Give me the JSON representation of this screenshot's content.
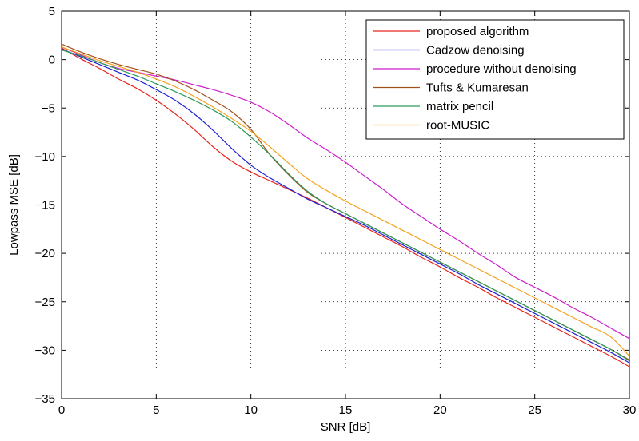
{
  "chart_data": {
    "type": "line",
    "title": "",
    "xlabel": "SNR [dB]",
    "ylabel": "Lowpass MSE [dB]",
    "xlim": [
      0,
      30
    ],
    "ylim": [
      -35,
      5
    ],
    "xticks": [
      0,
      5,
      10,
      15,
      20,
      25,
      30
    ],
    "yticks": [
      5,
      0,
      -5,
      -10,
      -15,
      -20,
      -25,
      -30,
      -35
    ],
    "grid": true,
    "legend_position": "top-right",
    "series": [
      {
        "name": "proposed algorithm",
        "color": "#e8261d",
        "x": [
          0,
          1,
          2,
          3,
          4,
          5,
          6,
          7,
          8,
          9,
          10,
          11,
          12,
          13,
          14,
          15,
          16,
          17,
          18,
          19,
          20,
          21,
          22,
          23,
          24,
          25,
          26,
          27,
          28,
          29,
          30
        ],
        "y": [
          1.2,
          0.1,
          -0.9,
          -2.0,
          -3.0,
          -4.2,
          -5.6,
          -7.2,
          -9.0,
          -10.5,
          -11.6,
          -12.5,
          -13.4,
          -14.3,
          -15.3,
          -16.3,
          -17.3,
          -18.3,
          -19.3,
          -20.4,
          -21.4,
          -22.5,
          -23.5,
          -24.6,
          -25.6,
          -26.6,
          -27.6,
          -28.6,
          -29.6,
          -30.6,
          -31.7
        ]
      },
      {
        "name": "Cadzow denoising",
        "color": "#1f1fd6",
        "x": [
          0,
          1,
          2,
          3,
          4,
          5,
          6,
          7,
          8,
          9,
          10,
          11,
          12,
          13,
          14,
          15,
          16,
          17,
          18,
          19,
          20,
          21,
          22,
          23,
          24,
          25,
          26,
          27,
          28,
          29,
          30
        ],
        "y": [
          1.1,
          0.3,
          -0.5,
          -1.3,
          -2.1,
          -3.1,
          -4.2,
          -5.6,
          -7.3,
          -9.2,
          -10.9,
          -12.2,
          -13.3,
          -14.4,
          -15.3,
          -16.2,
          -17.1,
          -18.1,
          -19.1,
          -20.1,
          -21.1,
          -22.1,
          -23.2,
          -24.2,
          -25.2,
          -26.2,
          -27.2,
          -28.2,
          -29.2,
          -30.2,
          -31.3
        ]
      },
      {
        "name": "procedure without denoising",
        "color": "#cc1fcc",
        "x": [
          0,
          1,
          2,
          3,
          4,
          5,
          6,
          7,
          8,
          9,
          10,
          11,
          12,
          13,
          14,
          15,
          16,
          17,
          18,
          19,
          20,
          21,
          22,
          23,
          24,
          25,
          26,
          27,
          28,
          29,
          30
        ],
        "y": [
          1.3,
          0.5,
          -0.3,
          -0.9,
          -1.3,
          -1.7,
          -2.1,
          -2.6,
          -3.1,
          -3.7,
          -4.4,
          -5.4,
          -6.7,
          -8.1,
          -9.3,
          -10.6,
          -12.0,
          -13.4,
          -14.9,
          -16.2,
          -17.5,
          -18.7,
          -20.0,
          -21.2,
          -22.5,
          -23.5,
          -24.5,
          -25.6,
          -26.6,
          -27.7,
          -28.8
        ]
      },
      {
        "name": "Tufts & Kumaresan",
        "color": "#a0521d",
        "x": [
          0,
          1,
          2,
          3,
          4,
          5,
          6,
          7,
          8,
          9,
          10,
          11,
          12,
          13,
          14,
          15,
          16,
          17,
          18,
          19,
          20,
          21,
          22,
          23,
          24,
          25,
          26,
          27,
          28,
          29,
          30
        ],
        "y": [
          1.6,
          0.8,
          0.1,
          -0.5,
          -1.0,
          -1.5,
          -2.2,
          -3.1,
          -4.2,
          -5.4,
          -7.2,
          -9.8,
          -11.9,
          -13.7,
          -14.9,
          -15.9,
          -16.9,
          -17.9,
          -18.9,
          -19.9,
          -20.9,
          -21.9,
          -22.9,
          -23.9,
          -24.9,
          -25.9,
          -26.9,
          -27.9,
          -28.9,
          -29.9,
          -31.0
        ]
      },
      {
        "name": "matrix pencil",
        "color": "#2b9a5a",
        "x": [
          0,
          1,
          2,
          3,
          4,
          5,
          6,
          7,
          8,
          9,
          10,
          11,
          12,
          13,
          14,
          15,
          16,
          17,
          18,
          19,
          20,
          21,
          22,
          23,
          24,
          25,
          26,
          27,
          28,
          29,
          30
        ],
        "y": [
          1.0,
          0.4,
          -0.3,
          -1.0,
          -1.7,
          -2.5,
          -3.3,
          -4.2,
          -5.2,
          -6.4,
          -8.0,
          -9.8,
          -11.8,
          -13.6,
          -14.9,
          -15.9,
          -16.9,
          -17.9,
          -18.9,
          -19.9,
          -20.9,
          -21.9,
          -22.9,
          -23.9,
          -24.9,
          -25.9,
          -26.9,
          -27.9,
          -28.9,
          -29.9,
          -31.1
        ]
      },
      {
        "name": "root-MUSIC",
        "color": "#f5a21d",
        "x": [
          0,
          1,
          2,
          3,
          4,
          5,
          6,
          7,
          8,
          9,
          10,
          11,
          12,
          13,
          14,
          15,
          16,
          17,
          18,
          19,
          20,
          21,
          22,
          23,
          24,
          25,
          26,
          27,
          28,
          29,
          30
        ],
        "y": [
          1.3,
          0.6,
          -0.1,
          -0.7,
          -1.3,
          -2.0,
          -2.8,
          -3.8,
          -4.9,
          -6.1,
          -7.4,
          -9.0,
          -10.7,
          -12.3,
          -13.5,
          -14.6,
          -15.6,
          -16.6,
          -17.6,
          -18.6,
          -19.6,
          -20.6,
          -21.6,
          -22.6,
          -23.6,
          -24.6,
          -25.6,
          -26.6,
          -27.6,
          -28.6,
          -30.6
        ]
      }
    ]
  }
}
